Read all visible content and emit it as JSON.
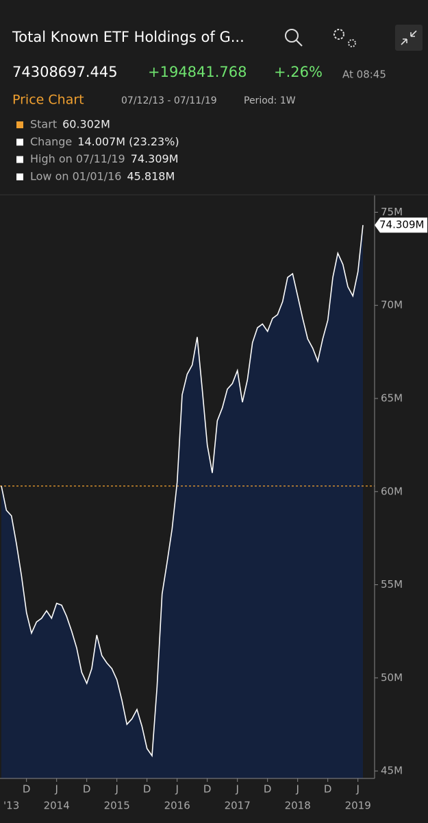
{
  "header": {
    "title": "Total Known ETF Holdings of G...",
    "price": "74308697.445",
    "change": "+194841.768",
    "change_pct": "+.26%",
    "time": "At 08:45"
  },
  "toolbar": {
    "tab": "Price Chart",
    "range": "07/12/13 - 07/11/19",
    "period": "Period: 1W"
  },
  "legend": [
    {
      "label": "Start",
      "value": "60.302M"
    },
    {
      "label": "Change",
      "value": "14.007M (23.23%)"
    },
    {
      "label": "High on 07/11/19",
      "value": "74.309M"
    },
    {
      "label": "Low on 01/01/16",
      "value": "45.818M"
    }
  ],
  "chart_data": {
    "type": "area",
    "color": "#ffffff",
    "fill": "#14213d",
    "ref_color": "#f0a030",
    "x": [
      "2013-07",
      "2013-08",
      "2013-09",
      "2013-10",
      "2013-11",
      "2013-12",
      "2014-01",
      "2014-02",
      "2014-03",
      "2014-04",
      "2014-05",
      "2014-06",
      "2014-07",
      "2014-08",
      "2014-09",
      "2014-10",
      "2014-11",
      "2014-12",
      "2015-01",
      "2015-02",
      "2015-03",
      "2015-04",
      "2015-05",
      "2015-06",
      "2015-07",
      "2015-08",
      "2015-09",
      "2015-10",
      "2015-11",
      "2015-12",
      "2016-01",
      "2016-02",
      "2016-03",
      "2016-04",
      "2016-05",
      "2016-06",
      "2016-07",
      "2016-08",
      "2016-09",
      "2016-10",
      "2016-11",
      "2016-12",
      "2017-01",
      "2017-02",
      "2017-03",
      "2017-04",
      "2017-05",
      "2017-06",
      "2017-07",
      "2017-08",
      "2017-09",
      "2017-10",
      "2017-11",
      "2017-12",
      "2018-01",
      "2018-02",
      "2018-03",
      "2018-04",
      "2018-05",
      "2018-06",
      "2018-07",
      "2018-08",
      "2018-09",
      "2018-10",
      "2018-11",
      "2018-12",
      "2019-01",
      "2019-02",
      "2019-03",
      "2019-04",
      "2019-05",
      "2019-06",
      "2019-07"
    ],
    "values": [
      60.302,
      59.0,
      58.7,
      57.2,
      55.5,
      53.5,
      52.4,
      53.0,
      53.2,
      53.6,
      53.2,
      54.0,
      53.9,
      53.3,
      52.5,
      51.6,
      50.3,
      49.7,
      50.5,
      52.3,
      51.2,
      50.8,
      50.5,
      49.9,
      48.8,
      47.5,
      47.8,
      48.3,
      47.4,
      46.2,
      45.818,
      49.5,
      54.5,
      56.2,
      58.0,
      60.5,
      65.2,
      66.3,
      66.8,
      68.3,
      65.5,
      62.5,
      61.0,
      63.8,
      64.5,
      65.5,
      65.8,
      66.5,
      64.8,
      66.0,
      68.0,
      68.8,
      69.0,
      68.6,
      69.3,
      69.5,
      70.2,
      71.5,
      71.7,
      70.5,
      69.3,
      68.2,
      67.7,
      67.0,
      68.2,
      69.2,
      71.5,
      72.8,
      72.2,
      71.0,
      70.5,
      71.8,
      74.309
    ],
    "last_value_label": "74.309M",
    "ylim": [
      44.6,
      75.9
    ],
    "yticks": [
      {
        "value": 45,
        "label": "45M"
      },
      {
        "value": 50,
        "label": "50M"
      },
      {
        "value": 55,
        "label": "55M"
      },
      {
        "value": 60,
        "label": "60M"
      },
      {
        "value": 65,
        "label": "65M"
      },
      {
        "value": 70,
        "label": "70M"
      },
      {
        "value": 75,
        "label": "75M"
      }
    ],
    "xticks": [
      {
        "value": "2013-12",
        "label": "D"
      },
      {
        "value": "2014-06",
        "label": "J"
      },
      {
        "value": "2014-12",
        "label": "D"
      },
      {
        "value": "2015-06",
        "label": "J"
      },
      {
        "value": "2015-12",
        "label": "D"
      },
      {
        "value": "2016-06",
        "label": "J"
      },
      {
        "value": "2016-12",
        "label": "D"
      },
      {
        "value": "2017-06",
        "label": "J"
      },
      {
        "value": "2017-12",
        "label": "D"
      },
      {
        "value": "2018-06",
        "label": "J"
      },
      {
        "value": "2018-12",
        "label": "D"
      },
      {
        "value": "2019-06",
        "label": "J"
      }
    ],
    "xticks_years": [
      {
        "value": "2013-09",
        "label": "'13"
      },
      {
        "value": "2014-06",
        "label": "2014"
      },
      {
        "value": "2015-06",
        "label": "2015"
      },
      {
        "value": "2016-06",
        "label": "2016"
      },
      {
        "value": "2017-06",
        "label": "2017"
      },
      {
        "value": "2018-06",
        "label": "2018"
      },
      {
        "value": "2019-06",
        "label": "2019"
      }
    ]
  }
}
